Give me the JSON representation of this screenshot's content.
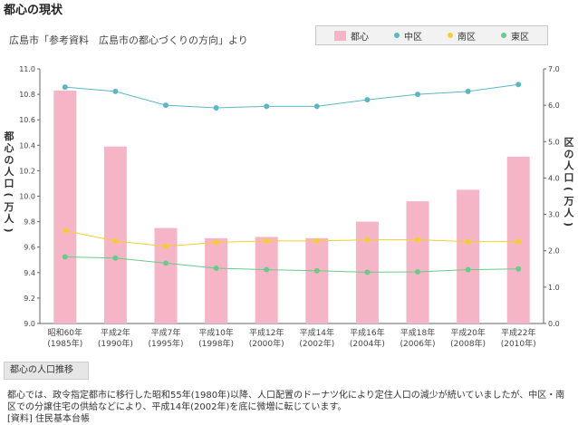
{
  "page": {
    "title": "都心の現状",
    "source": "広島市「参考資料　広島市の都心づくりの方向」より",
    "section_label": "都心の人口推移",
    "description": "都心では、政令指定都市に移行した昭和55年(1980年)以降、人口配置のドーナツ化により定住人口の減少が続いていましたが、中区・南区での分譲住宅の供給などにより、平成14年(2002年)を底に微増に転じています。",
    "data_source": "[資料] 住民基本台帳"
  },
  "colors": {
    "bar": "#f6b5c6",
    "naka": "#5bb8c3",
    "minami": "#f2cf2e",
    "higashi": "#66cc88",
    "axis": "#666666",
    "grid": "#d0d0d0"
  },
  "legend": [
    {
      "key": "toshin",
      "label": "都心",
      "kind": "bar"
    },
    {
      "key": "naka",
      "label": "中区",
      "kind": "line"
    },
    {
      "key": "minami",
      "label": "南区",
      "kind": "line"
    },
    {
      "key": "higashi",
      "label": "東区",
      "kind": "line"
    }
  ],
  "chart_data": {
    "type": "bar",
    "categories": [
      {
        "line1": "昭和60年",
        "line2": "(1985年)"
      },
      {
        "line1": "平成2年",
        "line2": "(1990年)"
      },
      {
        "line1": "平成7年",
        "line2": "(1995年)"
      },
      {
        "line1": "平成10年",
        "line2": "(1998年)"
      },
      {
        "line1": "平成12年",
        "line2": "(2000年)"
      },
      {
        "line1": "平成14年",
        "line2": "(2002年)"
      },
      {
        "line1": "平成16年",
        "line2": "(2004年)"
      },
      {
        "line1": "平成18年",
        "line2": "(2006年)"
      },
      {
        "line1": "平成20年",
        "line2": "(2008年)"
      },
      {
        "line1": "平成22年",
        "line2": "(2010年)"
      }
    ],
    "series": [
      {
        "key": "toshin",
        "name": "都心",
        "type": "bar",
        "axis": "left",
        "values": [
          10.83,
          10.39,
          9.75,
          9.67,
          9.68,
          9.67,
          9.8,
          9.96,
          10.05,
          10.31
        ]
      },
      {
        "key": "naka",
        "name": "中区",
        "type": "line",
        "axis": "right",
        "values": [
          6.5,
          6.38,
          6.0,
          5.93,
          5.97,
          5.97,
          6.15,
          6.3,
          6.38,
          6.57
        ]
      },
      {
        "key": "minami",
        "name": "南区",
        "type": "line",
        "axis": "right",
        "values": [
          2.55,
          2.27,
          2.12,
          2.23,
          2.27,
          2.27,
          2.3,
          2.3,
          2.25,
          2.25
        ]
      },
      {
        "key": "higashi",
        "name": "東区",
        "type": "line",
        "axis": "right",
        "values": [
          1.83,
          1.8,
          1.66,
          1.52,
          1.48,
          1.45,
          1.41,
          1.42,
          1.48,
          1.5
        ]
      }
    ],
    "left_axis": {
      "label": "都心の人口(万人)",
      "min": 9.0,
      "max": 11.0,
      "step": 0.2,
      "ticks": [
        "9.0",
        "9.2",
        "9.4",
        "9.6",
        "9.8",
        "10.0",
        "10.2",
        "10.4",
        "10.6",
        "10.8",
        "11.0"
      ]
    },
    "right_axis": {
      "label": "区の人口(万人)",
      "min": 0.0,
      "max": 7.0,
      "step": 1.0,
      "ticks": [
        "0.0",
        "1.0",
        "2.0",
        "3.0",
        "4.0",
        "5.0",
        "6.0",
        "7.0"
      ]
    },
    "grid": false,
    "legend_position": "top-right"
  }
}
